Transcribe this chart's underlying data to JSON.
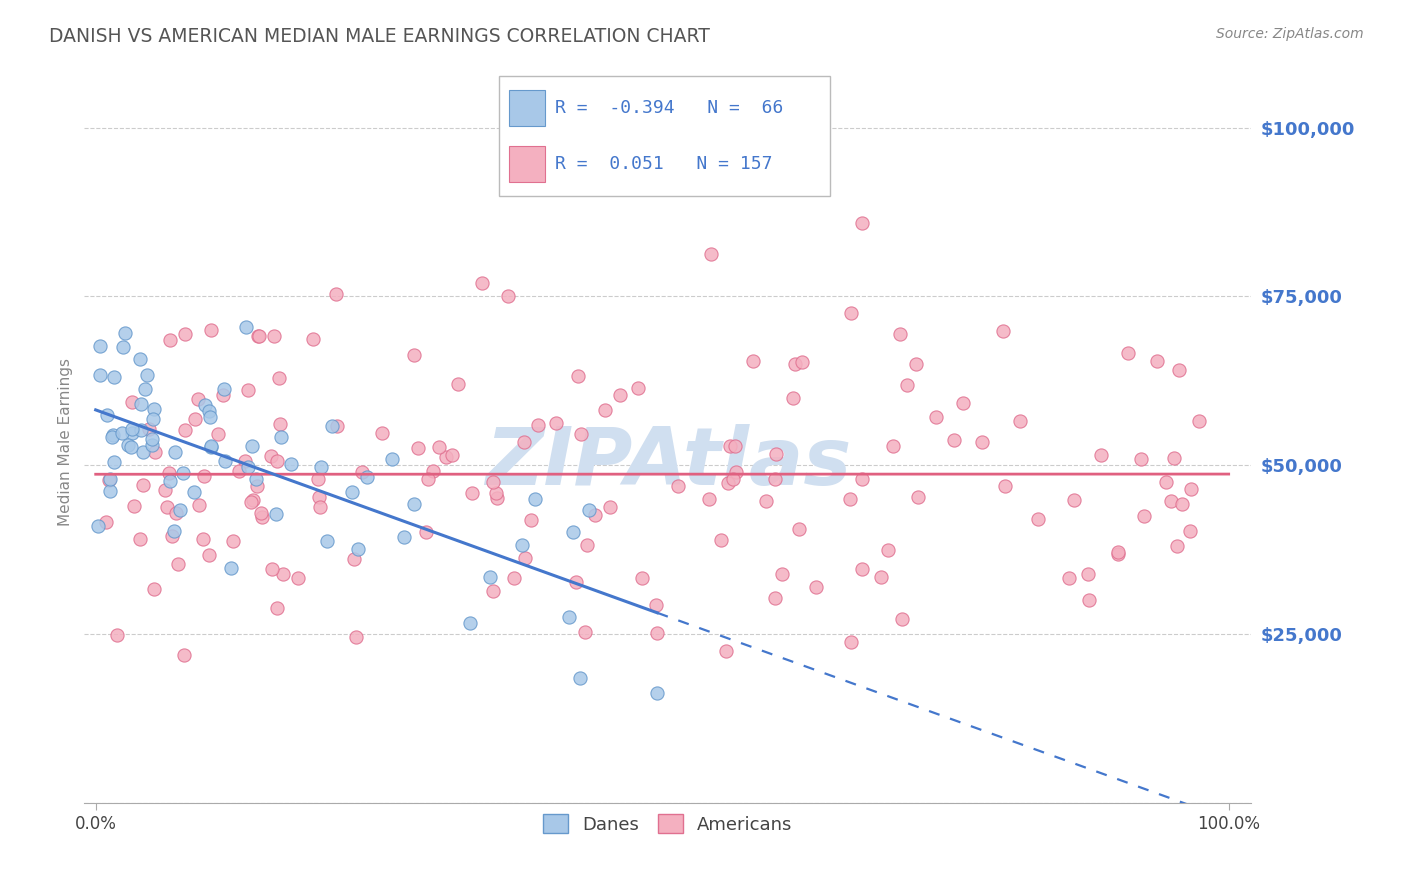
{
  "title": "DANISH VS AMERICAN MEDIAN MALE EARNINGS CORRELATION CHART",
  "source": "Source: ZipAtlas.com",
  "ylabel": "Median Male Earnings",
  "danes_color": "#a8c8e8",
  "danes_edge_color": "#6699cc",
  "americans_color": "#f4b0c0",
  "americans_edge_color": "#e07090",
  "danes_R": -0.394,
  "danes_N": 66,
  "americans_R": 0.051,
  "americans_N": 157,
  "line_danes_color": "#4477cc",
  "line_americans_color": "#e06080",
  "watermark_color": "#d0dff0",
  "background_color": "#ffffff",
  "grid_color": "#cccccc",
  "title_color": "#555555",
  "legend_text_color": "#4477cc",
  "ytick_color": "#4477cc"
}
